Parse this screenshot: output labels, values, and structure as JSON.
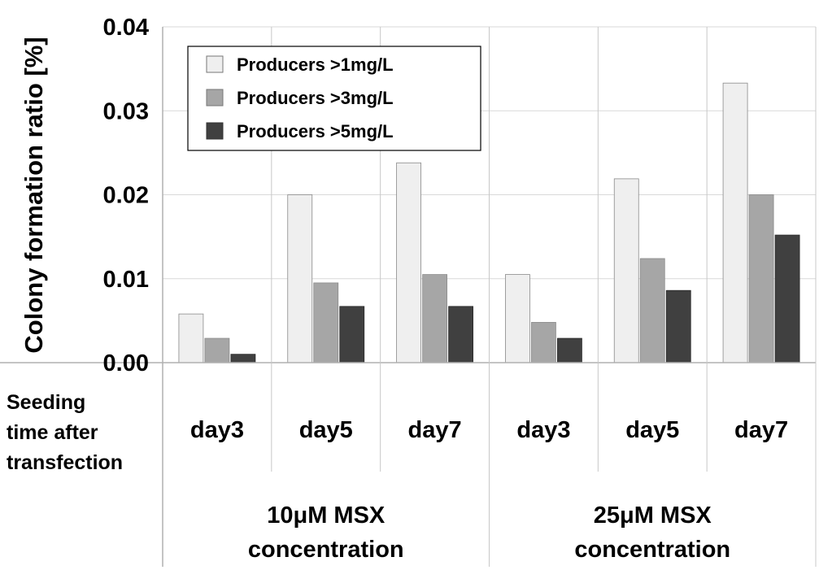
{
  "chart_data": {
    "type": "bar",
    "ylabel": "Colony formation ratio [%]",
    "ylim": [
      0,
      0.04
    ],
    "yticks": [
      "0.00",
      "0.01",
      "0.02",
      "0.03",
      "0.04"
    ],
    "row_header": [
      "Seeding",
      "time after",
      "transfection"
    ],
    "categories": [
      "day3",
      "day5",
      "day7",
      "day3",
      "day5",
      "day7"
    ],
    "groups": [
      {
        "label_lines": [
          "10μM MSX",
          "concentration"
        ],
        "span": [
          0,
          3
        ]
      },
      {
        "label_lines": [
          "25μM MSX",
          "concentration"
        ],
        "span": [
          3,
          6
        ]
      }
    ],
    "series": [
      {
        "name": "Producers >1mg/L",
        "color": "#efefef",
        "values": [
          0.0058,
          0.02,
          0.0238,
          0.0105,
          0.0219,
          0.0333
        ]
      },
      {
        "name": "Producers >3mg/L",
        "color": "#a6a6a6",
        "values": [
          0.0029,
          0.0095,
          0.0105,
          0.0048,
          0.0124,
          0.02
        ]
      },
      {
        "name": "Producers >5mg/L",
        "color": "#404040",
        "values": [
          0.001,
          0.0067,
          0.0067,
          0.0029,
          0.0086,
          0.0152
        ]
      }
    ],
    "legend_position": "top-left",
    "grid": true
  }
}
